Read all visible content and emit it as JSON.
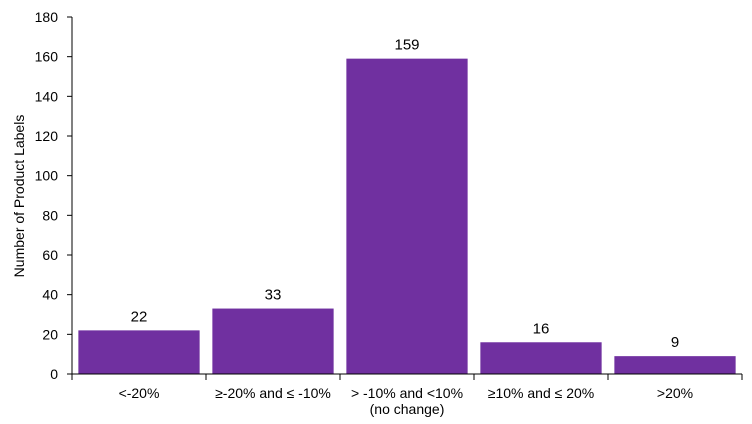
{
  "chart_data": {
    "type": "bar",
    "categories": [
      [
        "<-20%"
      ],
      [
        "≥-20% and  ≤ -10%"
      ],
      [
        "> -10% and <10%",
        "(no change)"
      ],
      [
        "≥10% and  ≤ 20%"
      ],
      [
        ">20%"
      ]
    ],
    "values": [
      22,
      33,
      159,
      16,
      9
    ],
    "data_labels": [
      "22",
      "33",
      "159",
      "16",
      "9"
    ],
    "ylabel": "Number of Product Labels",
    "ylim": [
      0,
      180
    ],
    "yticks": [
      0,
      20,
      40,
      60,
      80,
      100,
      120,
      140,
      160,
      180
    ],
    "grid": false,
    "legend": "none",
    "colors": {
      "bar": "#7030A0",
      "axis": "#000000"
    }
  }
}
